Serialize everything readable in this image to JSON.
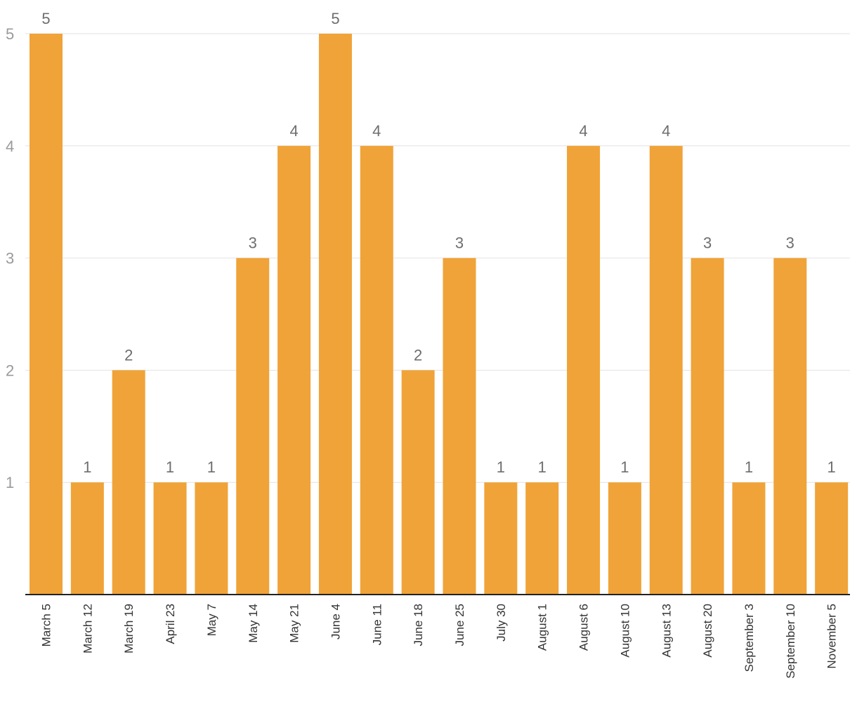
{
  "chart_data": {
    "type": "bar",
    "categories": [
      "March 5",
      "March 12",
      "March 19",
      "April 23",
      "May 7",
      "May 14",
      "May 21",
      "June 4",
      "June 11",
      "June 18",
      "June 25",
      "July 30",
      "August 1",
      "August 6",
      "August 10",
      "August 13",
      "August 20",
      "September 3",
      "September 10",
      "November 5"
    ],
    "values": [
      5,
      1,
      2,
      1,
      1,
      3,
      4,
      5,
      4,
      2,
      3,
      1,
      1,
      4,
      1,
      4,
      3,
      1,
      3,
      1
    ],
    "yticks": [
      1,
      2,
      3,
      4,
      5
    ],
    "ylim": [
      0,
      5
    ],
    "grid": true,
    "data_labels": true,
    "bar_color": "#f0a338",
    "title": "",
    "xlabel": "",
    "ylabel": ""
  }
}
